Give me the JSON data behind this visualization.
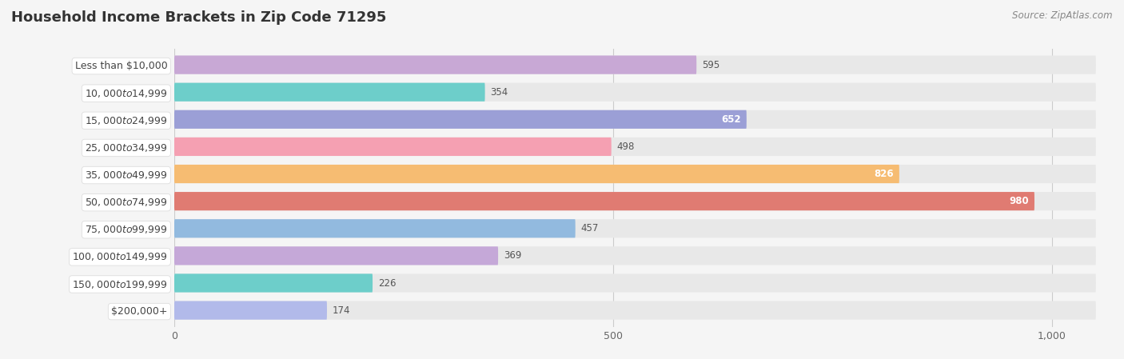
{
  "title": "Household Income Brackets in Zip Code 71295",
  "source": "Source: ZipAtlas.com",
  "categories": [
    "Less than $10,000",
    "$10,000 to $14,999",
    "$15,000 to $24,999",
    "$25,000 to $34,999",
    "$35,000 to $49,999",
    "$50,000 to $74,999",
    "$75,000 to $99,999",
    "$100,000 to $149,999",
    "$150,000 to $199,999",
    "$200,000+"
  ],
  "values": [
    595,
    354,
    652,
    498,
    826,
    980,
    457,
    369,
    226,
    174
  ],
  "bar_colors": [
    "#c8a8d5",
    "#6dceca",
    "#9b9fd6",
    "#f5a0b2",
    "#f6bc72",
    "#e07b72",
    "#92badf",
    "#c5a8d8",
    "#6dceca",
    "#b2baea"
  ],
  "value_inside": [
    false,
    false,
    true,
    false,
    true,
    true,
    false,
    false,
    false,
    false
  ],
  "xlim_max": 1050,
  "xticks": [
    0,
    500,
    1000
  ],
  "xtick_labels": [
    "0",
    "500",
    "1,000"
  ],
  "bg_color": "#f5f5f5",
  "bar_bg_color": "#e8e8e8",
  "title_fontsize": 13,
  "label_fontsize": 9,
  "value_fontsize": 8.5
}
